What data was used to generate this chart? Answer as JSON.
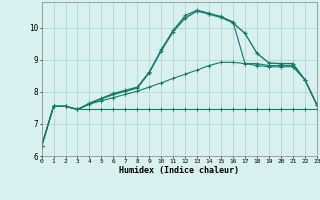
{
  "xlabel": "Humidex (Indice chaleur)",
  "background_color": "#d8f0ee",
  "grid_color": "#b0d8d4",
  "line_color": "#1a7a6e",
  "x_values": [
    0,
    1,
    2,
    3,
    4,
    5,
    6,
    7,
    8,
    9,
    10,
    11,
    12,
    13,
    14,
    15,
    16,
    17,
    18,
    19,
    20,
    21,
    22,
    23
  ],
  "line1": [
    6.3,
    7.55,
    7.55,
    7.45,
    7.45,
    7.45,
    7.45,
    7.45,
    7.45,
    7.45,
    7.45,
    7.45,
    7.45,
    7.45,
    7.45,
    7.45,
    7.45,
    7.45,
    7.45,
    7.45,
    7.45,
    7.45,
    7.45,
    7.45
  ],
  "line2": [
    6.3,
    7.55,
    7.55,
    7.45,
    7.62,
    7.72,
    7.82,
    7.92,
    8.02,
    8.15,
    8.28,
    8.42,
    8.55,
    8.68,
    8.82,
    8.92,
    8.92,
    8.88,
    8.82,
    8.78,
    8.78,
    8.78,
    8.38,
    7.6
  ],
  "line3": [
    6.3,
    7.55,
    7.55,
    7.45,
    7.62,
    7.78,
    7.92,
    8.02,
    8.12,
    8.6,
    9.28,
    9.88,
    10.3,
    10.52,
    10.42,
    10.32,
    10.15,
    9.82,
    9.2,
    8.9,
    8.88,
    8.88,
    8.38,
    7.6
  ],
  "line4": [
    6.3,
    7.55,
    7.55,
    7.45,
    7.65,
    7.8,
    7.95,
    8.05,
    8.15,
    8.62,
    9.32,
    9.92,
    10.38,
    10.55,
    10.45,
    10.35,
    10.18,
    8.88,
    8.88,
    8.82,
    8.82,
    8.82,
    8.38,
    7.6
  ],
  "xlim": [
    0,
    23
  ],
  "ylim": [
    6.0,
    10.8
  ],
  "yticks": [
    6,
    7,
    8,
    9,
    10
  ],
  "xticks": [
    0,
    1,
    2,
    3,
    4,
    5,
    6,
    7,
    8,
    9,
    10,
    11,
    12,
    13,
    14,
    15,
    16,
    17,
    18,
    19,
    20,
    21,
    22,
    23
  ]
}
